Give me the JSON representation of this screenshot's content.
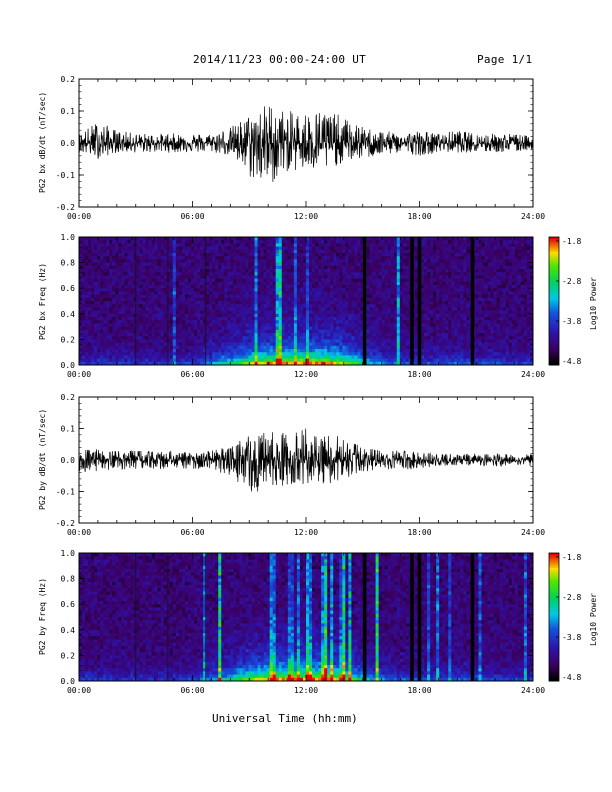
{
  "header": {
    "title": "2014/11/23  00:00-24:00 UT",
    "page": "Page 1/1"
  },
  "x_axis_title": "Universal Time (hh:mm)",
  "chart_data": [
    {
      "type": "line",
      "ylabel": "PG2 bx dB/dt (nT/sec)",
      "xlim": [
        0,
        24
      ],
      "ylim": [
        -0.2,
        0.2
      ],
      "yticks": [
        "0.2",
        "0.1",
        "0.0",
        "-0.1",
        "-0.2"
      ],
      "xticks": [
        "00:00",
        "06:00",
        "12:00",
        "18:00",
        "24:00"
      ],
      "series": [
        {
          "x": [
            0,
            1,
            2,
            3,
            4,
            5,
            6,
            7,
            8,
            9,
            10,
            11,
            12,
            13,
            14,
            15,
            16,
            17,
            18,
            19,
            20,
            21,
            22,
            23,
            24
          ],
          "y_max": [
            0.03,
            0.07,
            0.04,
            0.03,
            0.03,
            0.03,
            0.03,
            0.03,
            0.05,
            0.09,
            0.13,
            0.1,
            0.1,
            0.11,
            0.08,
            0.05,
            0.04,
            0.03,
            0.04,
            0.03,
            0.04,
            0.03,
            0.03,
            0.03,
            0.02
          ],
          "y_min": [
            -0.03,
            -0.05,
            -0.03,
            -0.03,
            -0.03,
            -0.03,
            -0.03,
            -0.03,
            -0.04,
            -0.11,
            -0.14,
            -0.09,
            -0.09,
            -0.09,
            -0.06,
            -0.05,
            -0.04,
            -0.03,
            -0.04,
            -0.03,
            -0.03,
            -0.03,
            -0.03,
            -0.03,
            -0.02
          ]
        }
      ]
    },
    {
      "type": "heatmap",
      "ylabel": "PG2 bx Freq (Hz)",
      "xlim": [
        0,
        24
      ],
      "ylim": [
        0,
        1.0
      ],
      "yticks": [
        "1.0",
        "0.8",
        "0.6",
        "0.4",
        "0.2",
        "0.0"
      ],
      "xticks": [
        "00:00",
        "06:00",
        "12:00",
        "18:00",
        "24:00"
      ],
      "colorbar": {
        "label": "Log10 Power",
        "ticks": [
          "-1.8",
          "-2.8",
          "-3.8",
          "-4.8"
        ],
        "range": [
          -4.8,
          -1.8
        ]
      },
      "data_gaps_hours": [
        15.1,
        17.6,
        18.0,
        20.8
      ],
      "activity_profile": [
        0.05,
        0.1,
        0.08,
        0.06,
        0.06,
        0.07,
        0.08,
        0.25,
        0.45,
        0.7,
        0.85,
        0.85,
        0.9,
        0.9,
        0.75,
        0.45,
        0.25,
        0.15,
        0.12,
        0.12,
        0.15,
        0.12,
        0.1,
        0.08,
        0.06
      ]
    },
    {
      "type": "line",
      "ylabel": "PG2 by dB/dt (nT/sec)",
      "xlim": [
        0,
        24
      ],
      "ylim": [
        -0.2,
        0.2
      ],
      "yticks": [
        "0.2",
        "0.1",
        "0.0",
        "-0.1",
        "-0.2"
      ],
      "xticks": [
        "00:00",
        "06:00",
        "12:00",
        "18:00",
        "24:00"
      ],
      "series": [
        {
          "x": [
            0,
            1,
            2,
            3,
            4,
            5,
            6,
            7,
            8,
            9,
            10,
            11,
            12,
            13,
            14,
            15,
            16,
            17,
            18,
            19,
            20,
            21,
            22,
            23,
            24
          ],
          "y_max": [
            0.03,
            0.04,
            0.03,
            0.03,
            0.03,
            0.03,
            0.03,
            0.03,
            0.05,
            0.08,
            0.1,
            0.09,
            0.1,
            0.09,
            0.07,
            0.04,
            0.03,
            0.03,
            0.03,
            0.02,
            0.02,
            0.02,
            0.02,
            0.02,
            0.02
          ],
          "y_min": [
            -0.04,
            -0.04,
            -0.03,
            -0.03,
            -0.03,
            -0.03,
            -0.03,
            -0.03,
            -0.06,
            -0.11,
            -0.09,
            -0.08,
            -0.08,
            -0.08,
            -0.06,
            -0.04,
            -0.03,
            -0.03,
            -0.03,
            -0.02,
            -0.02,
            -0.02,
            -0.02,
            -0.02,
            -0.02
          ]
        }
      ]
    },
    {
      "type": "heatmap",
      "ylabel": "PG2 by Freq (Hz)",
      "xlim": [
        0,
        24
      ],
      "ylim": [
        0,
        1.0
      ],
      "yticks": [
        "1.0",
        "0.8",
        "0.6",
        "0.4",
        "0.2",
        "0.0"
      ],
      "xticks": [
        "00:00",
        "06:00",
        "12:00",
        "18:00",
        "24:00"
      ],
      "colorbar": {
        "label": "Log10 Power",
        "ticks": [
          "-1.8",
          "-2.8",
          "-3.8",
          "-4.8"
        ],
        "range": [
          -4.8,
          -1.8
        ]
      },
      "data_gaps_hours": [
        15.1,
        17.6,
        18.0,
        20.8
      ],
      "activity_profile": [
        0.05,
        0.08,
        0.06,
        0.06,
        0.06,
        0.06,
        0.08,
        0.22,
        0.45,
        0.7,
        0.85,
        0.85,
        0.9,
        0.88,
        0.72,
        0.4,
        0.22,
        0.14,
        0.12,
        0.12,
        0.14,
        0.12,
        0.1,
        0.08,
        0.06
      ]
    }
  ]
}
